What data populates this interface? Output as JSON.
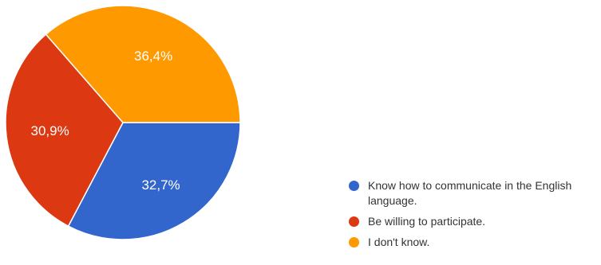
{
  "chart_data": {
    "type": "pie",
    "title": "",
    "slices": [
      {
        "label": "Know how to communicate in the English language.",
        "value": 32.7,
        "display": "32,7%",
        "color": "#3366cc"
      },
      {
        "label": "Be willing to participate.",
        "value": 30.9,
        "display": "30,9%",
        "color": "#dc3912"
      },
      {
        "label": "I don't know.",
        "value": 36.4,
        "display": "36,4%",
        "color": "#ff9900"
      }
    ],
    "legend_position": "bottom-right",
    "start_angle_deg": 0,
    "direction": "clockwise"
  }
}
